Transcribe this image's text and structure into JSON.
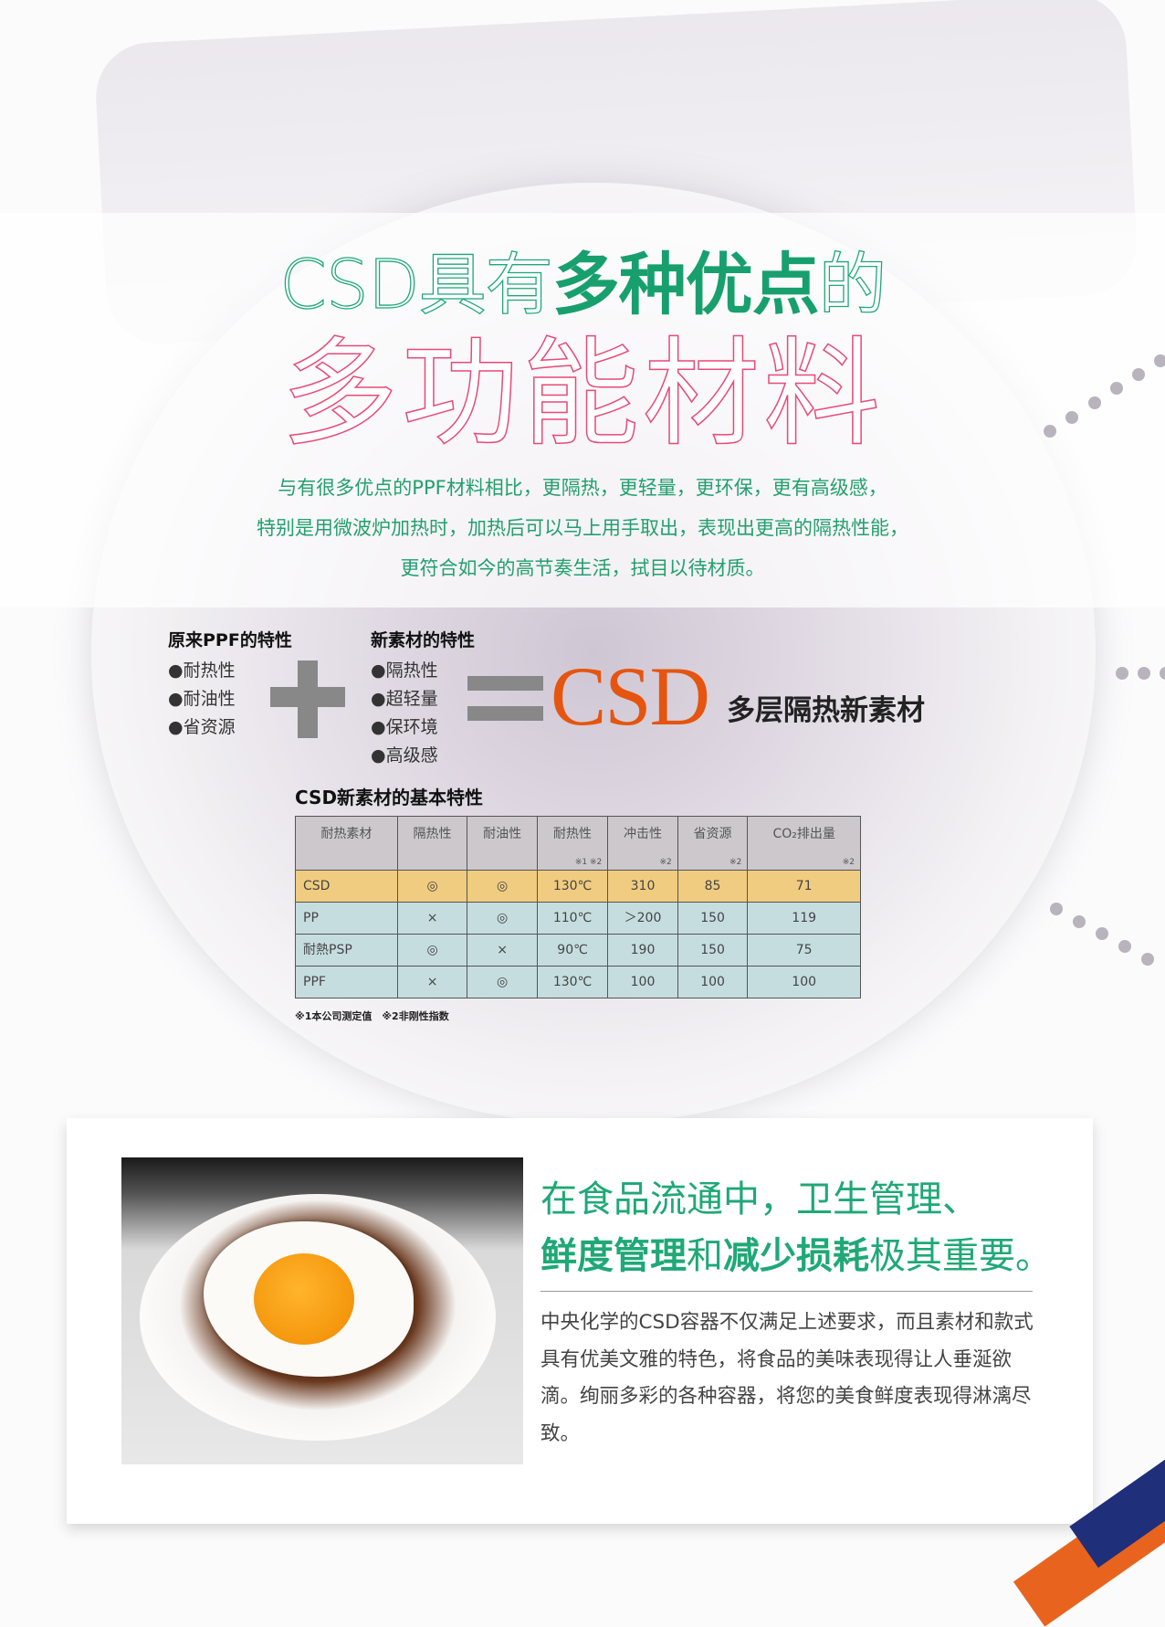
{
  "title": {
    "line1_prefix": "CSD具有",
    "line1_bold": "多种优点",
    "line1_suffix": "的",
    "line2": "多功能材料"
  },
  "intro": [
    "与有很多优点的PPF材料相比，更隔热，更轻量，更环保，更有高级感，",
    "特别是用微波炉加热时，加热后可以马上用手取出，表现出更高的隔热性能，",
    "更符合如今的高节奏生活，拭目以待材质。"
  ],
  "formula": {
    "old": {
      "title": "原来PPF的特性",
      "items": [
        "●耐热性",
        "●耐油性",
        "●省资源"
      ]
    },
    "new": {
      "title": "新素材的特性",
      "items": [
        "●隔热性",
        "●超轻量",
        "●保环境",
        "●高级感"
      ]
    },
    "result": "CSD",
    "result_sub": "多层隔热新素材"
  },
  "table": {
    "title": "CSD新素材的基本特性",
    "headers": [
      {
        "label": "耐热素材",
        "note": ""
      },
      {
        "label": "隔热性",
        "note": ""
      },
      {
        "label": "耐油性",
        "note": ""
      },
      {
        "label": "耐热性",
        "note": "※1 ※2"
      },
      {
        "label": "冲击性",
        "note": "※2"
      },
      {
        "label": "省资源",
        "note": "※2"
      },
      {
        "label": "CO₂排出量",
        "note": "※2"
      }
    ],
    "rows": [
      [
        "CSD",
        "◎",
        "◎",
        "130℃",
        "310",
        "85",
        "71"
      ],
      [
        "PP",
        "×",
        "◎",
        "110℃",
        "＞200",
        "150",
        "119"
      ],
      [
        "耐熱PSP",
        "◎",
        "×",
        "90℃",
        "190",
        "150",
        "75"
      ],
      [
        "PPF",
        "×",
        "◎",
        "130℃",
        "100",
        "100",
        "100"
      ]
    ],
    "highlight_row": 0,
    "footnote": "※1本公司测定值　※2非刚性指数"
  },
  "feature": {
    "headline1": "在食品流通中，卫生管理、",
    "headline2_bold1": "鲜度管理",
    "headline2_mid": "和",
    "headline2_bold2": "减少损耗",
    "headline2_end": "极其重要。",
    "body": "中央化学的CSD容器不仅满足上述要求，而且素材和款式具有优美文雅的特色，将食品的美味表现得让人垂涎欲滴。绚丽多彩的各种容器，将您的美食鲜度表现得淋漓尽致。"
  },
  "colors": {
    "green": "#1fa878",
    "pink": "#e84a78",
    "orange": "#e5550f",
    "highlight": "#f0cc80",
    "row": "#c6dde0",
    "header": "#ccc8cc"
  }
}
